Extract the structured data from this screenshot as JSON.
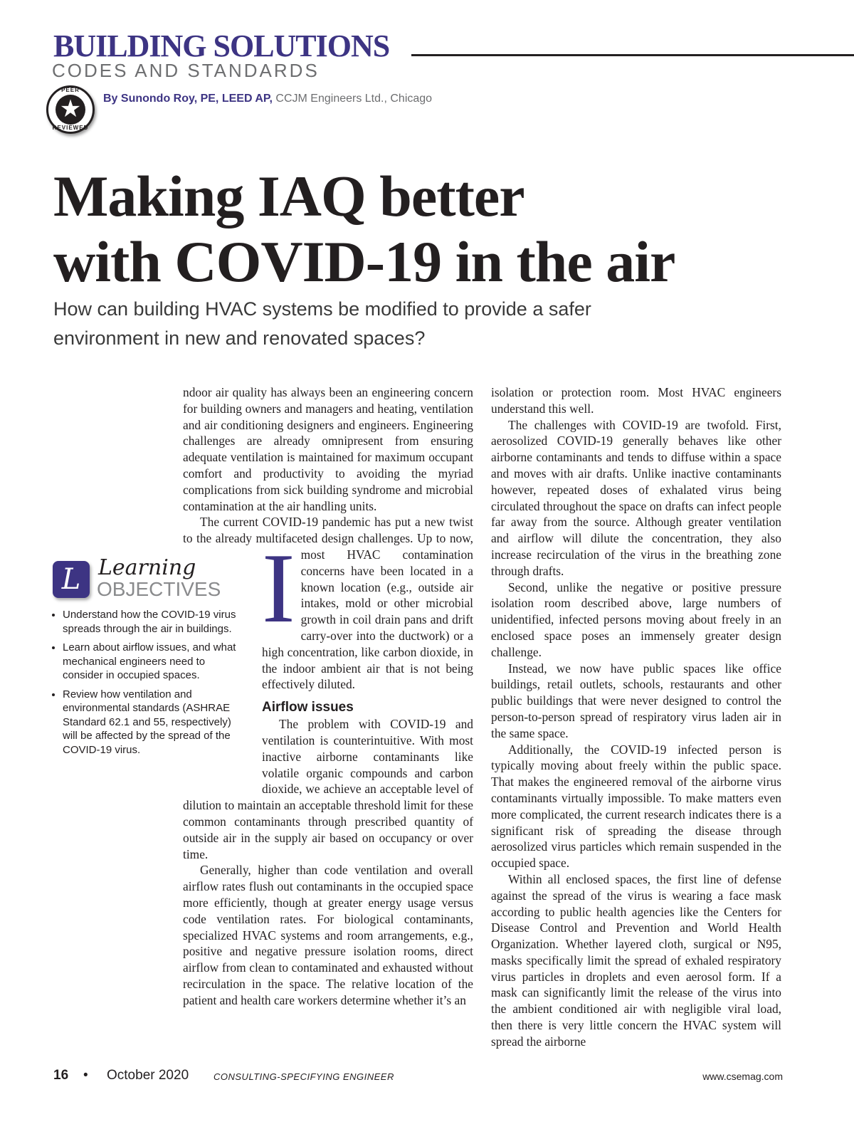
{
  "header": {
    "department": "BUILDING SOLUTIONS",
    "section": "CODES AND STANDARDS",
    "badge_top": "PEER",
    "badge_bottom": "REVIEWED",
    "byline_author": "By Sunondo Roy, PE, LEED AP,",
    "byline_affiliation": "CCJM Engineers Ltd., Chicago"
  },
  "article": {
    "title_line1": "Making IAQ better",
    "title_line2": "with COVID-19 in the air",
    "deck_line1": "How can building HVAC systems be modified to provide a safer",
    "deck_line2": "environment in new and renovated spaces?",
    "drop_cap": "I",
    "col1": {
      "p1": "ndoor air quality has always been an engineering concern for building owners and managers and heating, ventilation and air conditioning designers and engineers. Engineering challenges are already omnipresent from ensuring adequate ventilation is maintained for maximum occupant comfort and productivity to avoiding the myriad complications from sick building syndrome and microbial contamination at the air handling units.",
      "p2": "The current COVID-19 pandemic has put a new twist to the already multifaceted design challenges. Up to now, most HVAC contamination concerns have been located in a known location (e.g., outside air intakes, mold or other microbial growth in coil drain pans and drift carry-over into the ductwork) or a high concentration, like carbon dioxide, in the indoor ambient air that is not being effectively diluted.",
      "heading": "Airflow issues",
      "p3": "The problem with COVID-19 and ventilation is counterintuitive. With most inactive airborne contaminants like volatile organic compounds and carbon dioxide, we achieve an acceptable level of dilution to maintain an acceptable threshold limit for these common contaminants through prescribed quantity of outside air in the supply air based on occupancy or over time.",
      "p4": "Generally, higher than code ventilation and overall airflow rates flush out contaminants in the occupied space more efficiently, though at greater energy usage versus code ventilation rates. For biological contaminants, specialized HVAC systems and room arrangements, e.g., positive and negative pressure isolation rooms, direct airflow from clean to contaminated and exhausted without recirculation in the space. The relative location of the patient and health care workers determine whether it’s an"
    },
    "col2": {
      "p1": "isolation or protection room. Most HVAC engineers understand this well.",
      "p2": "The challenges with COVID-19 are twofold. First, aerosolized COVID-19 generally behaves like other airborne contaminants and tends to diffuse within a space and moves with air drafts. Unlike inactive contaminants however, repeated doses of exhalated virus being circulated throughout the space on drafts can infect people far away from the source. Although greater ventilation and airflow will dilute the concentration, they also increase recirculation of the virus in the breathing zone through drafts.",
      "p3": "Second, unlike the negative or positive pressure isolation room described above, large numbers of unidentified, infected persons moving about freely in an enclosed space poses an immensely greater design challenge.",
      "p4": "Instead, we now have public spaces like office buildings, retail outlets, schools, restaurants and other public buildings that were never designed to control the person-to-person spread of respiratory virus laden air in the same space.",
      "p5": "Additionally, the COVID-19 infected person is typically moving about freely within the public space. That makes the engineered removal of the airborne virus contaminants virtually impossible. To make matters even more complicated, the current research indicates there is a significant risk of spreading the disease through aerosolized virus particles which remain suspended in the occupied space.",
      "p6": "Within all enclosed spaces, the first line of defense against the spread of the virus is wearing a face mask according to public health agencies like the Centers for Disease Control and Prevention and World Health Organization. Whether layered cloth, surgical or N95, masks specifically limit the spread of exhaled respiratory virus particles in droplets and even aerosol form. If a mask can significantly limit the release of the virus into the ambient conditioned air with negligible viral load, then there is very little concern the HVAC system will spread the airborne"
    }
  },
  "learning_objectives": {
    "icon_letter": "L",
    "label_script": "Learning",
    "label_caps": "OBJECTIVES",
    "items": [
      "Understand how the COVID-19 virus spreads through the air in buildings.",
      "Learn about airflow issues, and what mechanical engineers need to consider in occupied spaces.",
      "Review how ventilation and environmental standards (ASHRAE Standard 62.1 and 55, respectively) will be affected by the spread of the COVID-19 virus."
    ]
  },
  "footer": {
    "page_number": "16",
    "separator": "•",
    "issue_date": "October 2020",
    "magazine": "CONSULTING-SPECIFYING ENGINEER",
    "website": "www.csemag.com"
  },
  "colors": {
    "brand_purple": "#3d3483",
    "text": "#231f20",
    "gray": "#6d6e70"
  }
}
